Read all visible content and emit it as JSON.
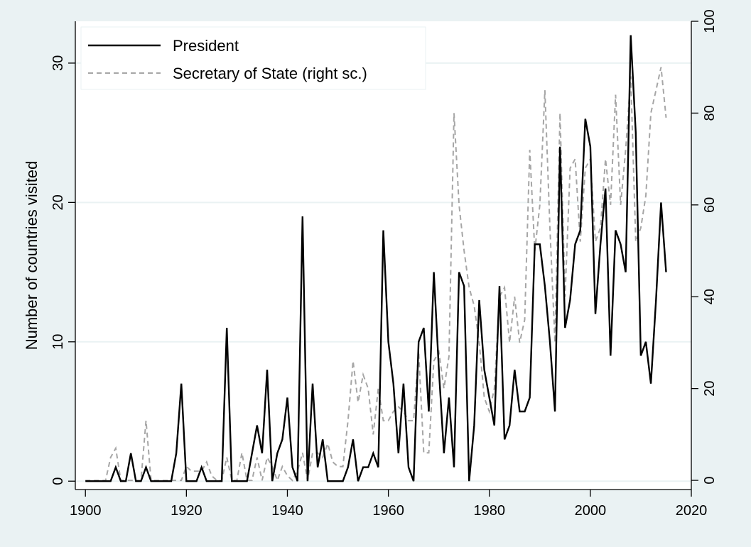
{
  "chart_data": {
    "type": "line",
    "xlabel": "",
    "ylabel": "Number of countries visited",
    "y2label": "",
    "xlim": [
      1898,
      2020
    ],
    "ylim": [
      -0.6,
      33
    ],
    "y2lim": [
      -2,
      100
    ],
    "xticks": [
      1900,
      1920,
      1940,
      1960,
      1980,
      2000,
      2020
    ],
    "yticks": [
      0,
      10,
      20,
      30
    ],
    "y2ticks": [
      0,
      20,
      40,
      60,
      80,
      100
    ],
    "grid": true,
    "legend_position": "top-left",
    "x": [
      1900,
      1901,
      1902,
      1903,
      1904,
      1905,
      1906,
      1907,
      1908,
      1909,
      1910,
      1911,
      1912,
      1913,
      1914,
      1915,
      1916,
      1917,
      1918,
      1919,
      1920,
      1921,
      1922,
      1923,
      1924,
      1925,
      1926,
      1927,
      1928,
      1929,
      1930,
      1931,
      1932,
      1933,
      1934,
      1935,
      1936,
      1937,
      1938,
      1939,
      1940,
      1941,
      1942,
      1943,
      1944,
      1945,
      1946,
      1947,
      1948,
      1949,
      1950,
      1951,
      1952,
      1953,
      1954,
      1955,
      1956,
      1957,
      1958,
      1959,
      1960,
      1961,
      1962,
      1963,
      1964,
      1965,
      1966,
      1967,
      1968,
      1969,
      1970,
      1971,
      1972,
      1973,
      1974,
      1975,
      1976,
      1977,
      1978,
      1979,
      1980,
      1981,
      1982,
      1983,
      1984,
      1985,
      1986,
      1987,
      1988,
      1989,
      1990,
      1991,
      1992,
      1993,
      1994,
      1995,
      1996,
      1997,
      1998,
      1999,
      2000,
      2001,
      2002,
      2003,
      2004,
      2005,
      2006,
      2007,
      2008,
      2009,
      2010,
      2011,
      2012,
      2013,
      2014,
      2015
    ],
    "series": [
      {
        "name": "President",
        "axis": "left",
        "color": "#000000",
        "dash": "solid",
        "values": [
          0,
          0,
          0,
          0,
          0,
          0,
          1,
          0,
          0,
          2,
          0,
          0,
          1,
          0,
          0,
          0,
          0,
          0,
          2,
          7,
          0,
          0,
          0,
          1,
          0,
          0,
          0,
          0,
          11,
          0,
          0,
          0,
          0,
          2,
          4,
          2,
          8,
          0,
          2,
          3,
          6,
          1,
          0,
          19,
          0,
          7,
          1,
          3,
          0,
          0,
          0,
          0,
          1,
          3,
          0,
          1,
          1,
          2,
          1,
          18,
          10,
          7,
          2,
          7,
          1,
          0,
          10,
          11,
          5,
          15,
          8,
          2,
          6,
          1,
          15,
          14,
          0,
          4,
          13,
          8,
          6,
          4,
          14,
          3,
          4,
          8,
          5,
          5,
          6,
          17,
          17,
          14,
          10,
          5,
          24,
          11,
          13,
          17,
          18,
          26,
          24,
          12,
          17,
          21,
          9,
          18,
          17,
          15,
          32,
          25,
          9,
          10,
          7,
          13,
          20,
          15
        ]
      },
      {
        "name": "Secretary of State (right sc.)",
        "axis": "right",
        "color": "#a6a6a6",
        "dash": "dashed",
        "values": [
          0,
          0,
          0,
          0,
          0,
          5,
          7,
          0,
          0,
          0,
          0,
          0,
          13,
          0,
          0,
          0,
          0,
          0,
          0,
          0,
          3,
          2,
          2,
          2,
          4,
          1,
          0,
          0,
          5,
          0,
          0,
          6,
          0,
          0,
          5,
          0,
          5,
          3,
          0,
          3,
          1,
          0,
          2,
          6,
          0,
          6,
          6,
          5,
          8,
          4,
          3,
          3,
          13,
          26,
          17,
          23,
          20,
          10,
          20,
          13,
          13,
          15,
          16,
          15,
          13,
          13,
          28,
          6,
          6,
          26,
          28,
          20,
          27,
          80,
          60,
          50,
          42,
          38,
          30,
          18,
          15,
          20,
          40,
          42,
          30,
          40,
          30,
          35,
          72,
          50,
          60,
          85,
          55,
          30,
          80,
          40,
          68,
          70,
          52,
          68,
          70,
          52,
          55,
          70,
          60,
          84,
          60,
          72,
          88,
          52,
          55,
          62,
          80,
          85,
          90,
          79
        ]
      }
    ]
  },
  "colors": {
    "background": "#eaf2f3",
    "plot_background": "#ffffff",
    "grid": "#eaf2f3"
  }
}
